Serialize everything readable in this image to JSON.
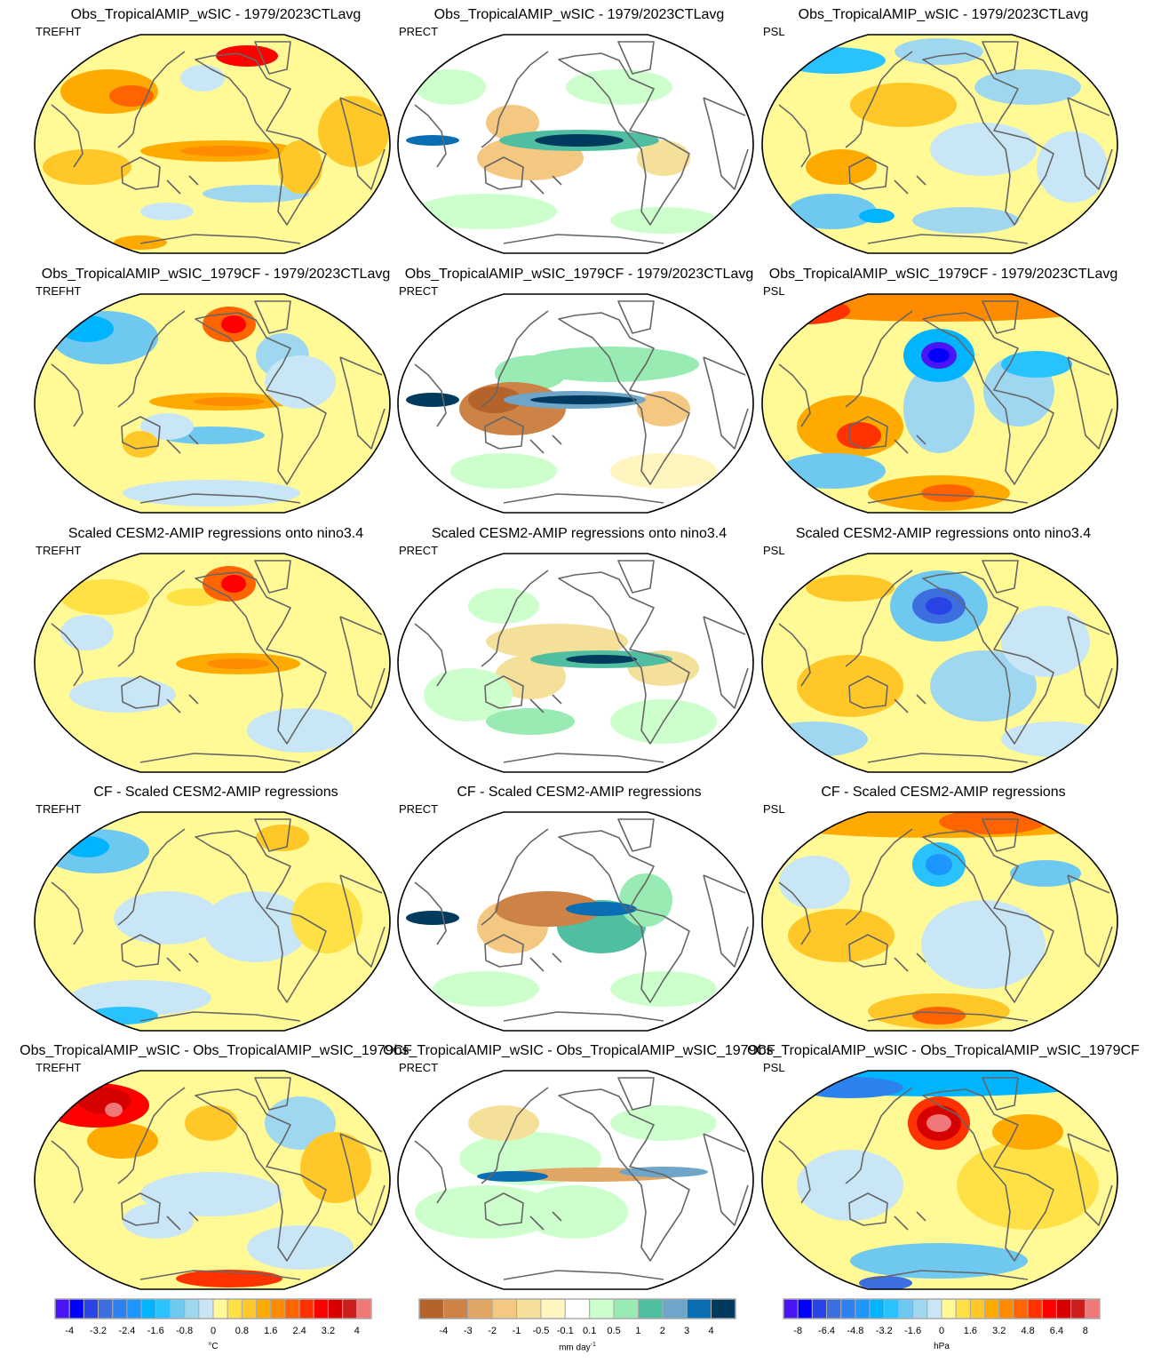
{
  "panels": [
    {
      "title": "Obs_TropicalAMIP_wSIC - 1979/2023CTLavg",
      "variable": "TREFHT",
      "scale": "temp"
    },
    {
      "title": "Obs_TropicalAMIP_wSIC - 1979/2023CTLavg",
      "variable": "PRECT",
      "scale": "prect"
    },
    {
      "title": "Obs_TropicalAMIP_wSIC - 1979/2023CTLavg",
      "variable": "PSL",
      "scale": "psl"
    },
    {
      "title": "Obs_TropicalAMIP_wSIC_1979CF - 1979/2023CTLavg",
      "variable": "TREFHT",
      "scale": "temp"
    },
    {
      "title": "Obs_TropicalAMIP_wSIC_1979CF - 1979/2023CTLavg",
      "variable": "PRECT",
      "scale": "prect"
    },
    {
      "title": "Obs_TropicalAMIP_wSIC_1979CF - 1979/2023CTLavg",
      "variable": "PSL",
      "scale": "psl"
    },
    {
      "title": "Scaled CESM2-AMIP regressions onto nino3.4",
      "variable": "TREFHT",
      "scale": "temp"
    },
    {
      "title": "Scaled CESM2-AMIP regressions onto nino3.4",
      "variable": "PRECT",
      "scale": "prect"
    },
    {
      "title": "Scaled CESM2-AMIP regressions onto nino3.4",
      "variable": "PSL",
      "scale": "psl"
    },
    {
      "title": "CF - Scaled CESM2-AMIP regressions",
      "variable": "TREFHT",
      "scale": "temp"
    },
    {
      "title": "CF - Scaled CESM2-AMIP regressions",
      "variable": "PRECT",
      "scale": "prect"
    },
    {
      "title": "CF - Scaled CESM2-AMIP regressions",
      "variable": "PSL",
      "scale": "psl"
    },
    {
      "title": "Obs_TropicalAMIP_wSIC - Obs_TropicalAMIP_wSIC_1979CF",
      "variable": "TREFHT",
      "scale": "temp"
    },
    {
      "title": "Obs_TropicalAMIP_wSIC - Obs_TropicalAMIP_wSIC_1979CF",
      "variable": "PRECT",
      "scale": "prect"
    },
    {
      "title": "Obs_TropicalAMIP_wSIC - Obs_TropicalAMIP_wSIC_1979CF",
      "variable": "PSL",
      "scale": "psl"
    }
  ],
  "colorbars": {
    "temp": {
      "units": "°C",
      "labels": [
        "-4",
        "-3.2",
        "-2.4",
        "-1.6",
        "-0.8",
        "0",
        "0.8",
        "1.6",
        "2.4",
        "3.2",
        "4"
      ],
      "colors": [
        "#4b14f5",
        "#0000ff",
        "#2844e6",
        "#3c6ee0",
        "#2d82f0",
        "#1e96ff",
        "#00b4ff",
        "#28c3ff",
        "#6ec8f0",
        "#a0d7f0",
        "#c8e6f5",
        "#fffa96",
        "#ffe146",
        "#ffc828",
        "#ffaa00",
        "#ff8c00",
        "#ff6400",
        "#ff3200",
        "#ff0000",
        "#d70000",
        "#cd1e1e",
        "#f07878"
      ]
    },
    "prect": {
      "units": "mm day",
      "units_sup": "-1",
      "labels": [
        "-4",
        "-3",
        "-2",
        "-1",
        "-0.5",
        "-0.1",
        "0.1",
        "0.5",
        "1",
        "2",
        "3",
        "4"
      ],
      "colors": [
        "#b4642a",
        "#cd8246",
        "#e1a564",
        "#f5c882",
        "#f5e09a",
        "#fff5be",
        "#ffffff",
        "#ccffcc",
        "#98ebb3",
        "#50bea0",
        "#6ea5c8",
        "#0a6eb4",
        "#003a5c"
      ]
    },
    "psl": {
      "units": "hPa",
      "labels": [
        "-8",
        "-6.4",
        "-4.8",
        "-3.2",
        "-1.6",
        "0",
        "1.6",
        "3.2",
        "4.8",
        "6.4",
        "8"
      ],
      "colors": [
        "#4b14f5",
        "#0000ff",
        "#2844e6",
        "#3c6ee0",
        "#2d82f0",
        "#1e96ff",
        "#00b4ff",
        "#28c3ff",
        "#6ec8f0",
        "#a0d7f0",
        "#c8e6f5",
        "#fffa96",
        "#ffe146",
        "#ffc828",
        "#ffaa00",
        "#ff8c00",
        "#ff6400",
        "#ff3200",
        "#ff0000",
        "#d70000",
        "#cd1e1e",
        "#f07878"
      ]
    }
  },
  "chart_data": {
    "type": "heatmap",
    "layout": "5 rows x 3 columns of global map panels",
    "variables": [
      "TREFHT",
      "PRECT",
      "PSL"
    ],
    "row_titles": [
      "Obs_TropicalAMIP_wSIC - 1979/2023CTLavg",
      "Obs_TropicalAMIP_wSIC_1979CF - 1979/2023CTLavg",
      "Scaled CESM2-AMIP regressions onto nino3.4",
      "CF - Scaled CESM2-AMIP regressions",
      "Obs_TropicalAMIP_wSIC - Obs_TropicalAMIP_wSIC_1979CF"
    ],
    "color_levels": {
      "TREFHT": {
        "units": "°C",
        "range": [
          -4,
          4
        ],
        "step": 0.4
      },
      "PRECT": {
        "units": "mm day-1",
        "levels": [
          -4,
          -3,
          -2,
          -1,
          -0.5,
          -0.1,
          0.1,
          0.5,
          1,
          2,
          3,
          4
        ]
      },
      "PSL": {
        "units": "hPa",
        "range": [
          -8,
          8
        ],
        "step": 0.8
      }
    }
  }
}
